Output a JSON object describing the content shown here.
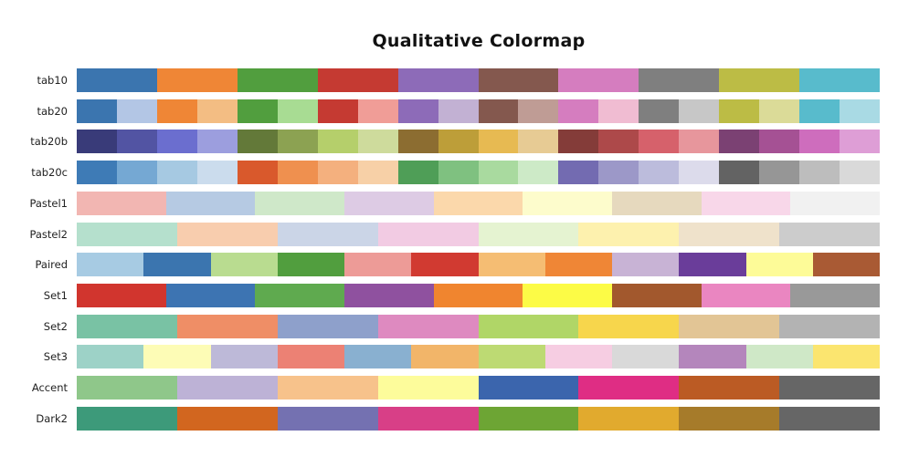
{
  "chart_data": {
    "type": "heatmap",
    "title": "Qualitative Colormap",
    "colormaps": [
      {
        "name": "tab10",
        "colors": [
          "#3b75af",
          "#ef8636",
          "#519e3e",
          "#c53a32",
          "#8d6bb8",
          "#84584e",
          "#d57dbf",
          "#7f7f7f",
          "#bcbc45",
          "#58bbcc"
        ]
      },
      {
        "name": "tab20",
        "colors": [
          "#3b75af",
          "#b3c6e5",
          "#ef8636",
          "#f3bd83",
          "#519e3e",
          "#a8dc93",
          "#c53a32",
          "#f09d97",
          "#8d6bb8",
          "#c2b1d3",
          "#84584e",
          "#bf9c95",
          "#d57dbf",
          "#f0bcd2",
          "#7f7f7f",
          "#c7c7c7",
          "#bcbc45",
          "#dbdb98",
          "#58bbcc",
          "#a9dae4"
        ]
      },
      {
        "name": "tab20b",
        "colors": [
          "#393b79",
          "#5254a3",
          "#6b6ecf",
          "#9c9ede",
          "#637939",
          "#8ca252",
          "#b5cf6b",
          "#cedb9c",
          "#8c6d31",
          "#bd9e39",
          "#e7ba52",
          "#e7cb94",
          "#843c39",
          "#ad494a",
          "#d6616b",
          "#e7969c",
          "#7b4173",
          "#a55194",
          "#ce6dbd",
          "#de9ed6"
        ]
      },
      {
        "name": "tab20c",
        "colors": [
          "#3e7bb6",
          "#75a8d3",
          "#a6c9e2",
          "#cbdced",
          "#d9592c",
          "#ef904f",
          "#f4b07e",
          "#f7d0a7",
          "#4f9e57",
          "#7fc180",
          "#a9da9f",
          "#cdeac7",
          "#736bb1",
          "#9c98c8",
          "#bcbcdc",
          "#dcdbeb",
          "#636363",
          "#969696",
          "#bdbdbd",
          "#d9d9d9"
        ]
      },
      {
        "name": "Pastel1",
        "colors": [
          "#f2b6b2",
          "#b6cae3",
          "#cfe8c9",
          "#ddcbe4",
          "#fbd8ab",
          "#fdfccc",
          "#e6d9be",
          "#f8d7e9",
          "#f1f1f1"
        ]
      },
      {
        "name": "Pastel2",
        "colors": [
          "#b5e0cd",
          "#f8cdae",
          "#cbd5e7",
          "#f2cbe3",
          "#e5f3d1",
          "#fdf1ae",
          "#efe2cb",
          "#cccccc"
        ]
      },
      {
        "name": "Paired",
        "colors": [
          "#a7cbe3",
          "#3b75af",
          "#b9dc90",
          "#519e3e",
          "#ed9b97",
          "#d13a31",
          "#f5bd73",
          "#ef8636",
          "#c8b3d5",
          "#6a3d9a",
          "#fdfb98",
          "#a95a34"
        ]
      },
      {
        "name": "Set1",
        "colors": [
          "#d1352e",
          "#3d74b2",
          "#5faa4f",
          "#8f519f",
          "#f0852f",
          "#fcfb46",
          "#a2582d",
          "#ea86c1",
          "#999999"
        ]
      },
      {
        "name": "Set2",
        "colors": [
          "#79c2a4",
          "#ef8e66",
          "#8ea0cb",
          "#de8ac0",
          "#b0d667",
          "#f7d64c",
          "#e2c595",
          "#b3b3b3"
        ]
      },
      {
        "name": "Set3",
        "colors": [
          "#9dd2c7",
          "#fdfcb6",
          "#bdb9d8",
          "#ec8174",
          "#89b0d0",
          "#f2b569",
          "#bdda73",
          "#f6cde2",
          "#d9d9d9",
          "#b486bc",
          "#cfe8c7",
          "#fbe56f"
        ]
      },
      {
        "name": "Accent",
        "colors": [
          "#8fc78a",
          "#bdb2d6",
          "#f7c28b",
          "#fdfc9b",
          "#3b65ad",
          "#df2d84",
          "#bb5b24",
          "#666666"
        ]
      },
      {
        "name": "Dark2",
        "colors": [
          "#3d9a7a",
          "#d2661f",
          "#7471b1",
          "#d83f87",
          "#6da534",
          "#e1aa2e",
          "#a67b2a",
          "#666666"
        ]
      }
    ]
  }
}
